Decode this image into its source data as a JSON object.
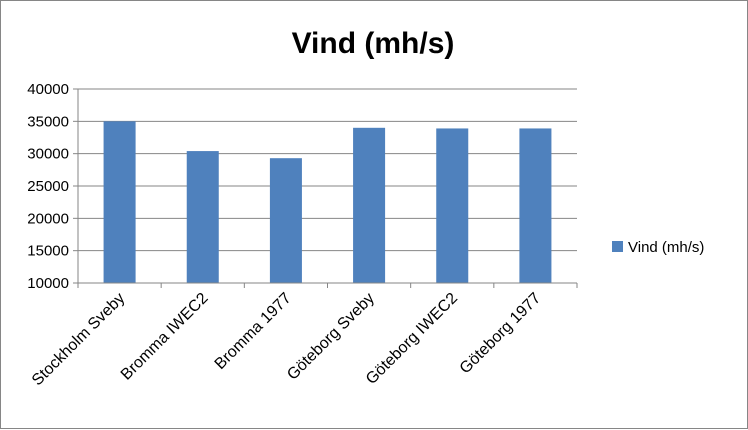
{
  "chart_data": {
    "type": "bar",
    "title": "Vind (mh/s)",
    "categories": [
      "Stockholm Sveby",
      "Bromma IWEC2",
      "Bromma 1977",
      "Göteborg Sveby",
      "Göteborg IWEC2",
      "Göteborg 1977"
    ],
    "series": [
      {
        "name": "Vind (mh/s)",
        "values": [
          35000,
          30400,
          29300,
          34000,
          33900,
          33900
        ],
        "color": "#4f81bd"
      }
    ],
    "ylim": [
      10000,
      40000
    ],
    "yticks": [
      10000,
      15000,
      20000,
      25000,
      30000,
      35000,
      40000
    ],
    "grid": true,
    "legend_position": "right",
    "gridline_color": "#868686"
  }
}
